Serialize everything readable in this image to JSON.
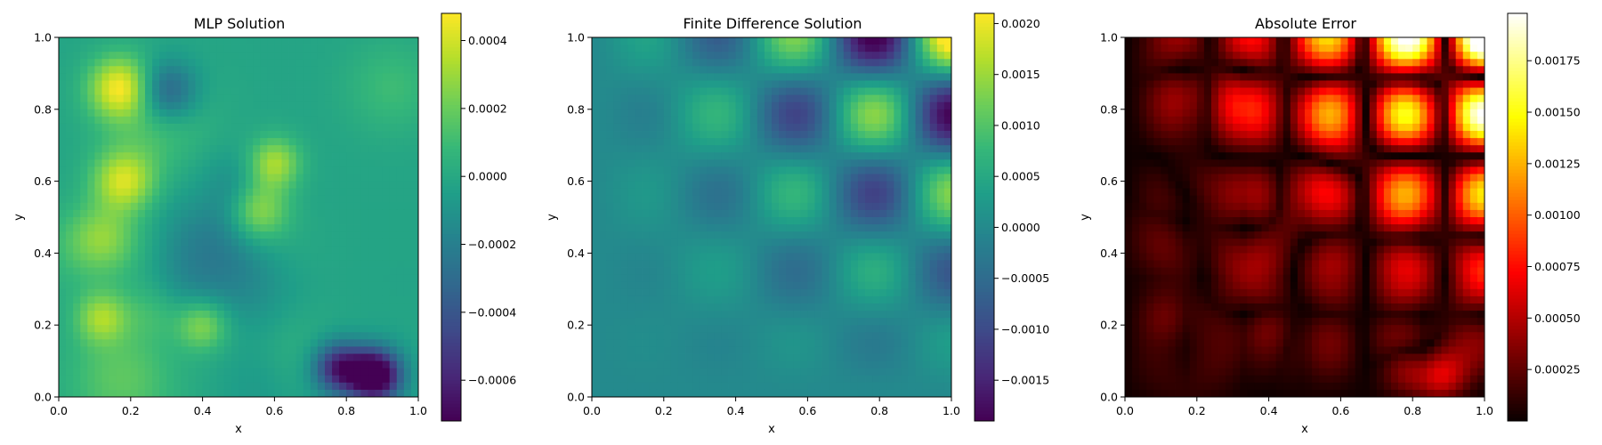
{
  "chart_data": [
    {
      "type": "heatmap",
      "title": "MLP Solution",
      "xlabel": "x",
      "ylabel": "y",
      "xlim": [
        0.0,
        1.0
      ],
      "ylim": [
        0.0,
        1.0
      ],
      "x_ticks": [
        "0.0",
        "0.2",
        "0.4",
        "0.6",
        "0.8",
        "1.0"
      ],
      "y_ticks": [
        "0.0",
        "0.2",
        "0.4",
        "0.6",
        "0.8",
        "1.0"
      ],
      "colormap": "viridis",
      "colorbar": {
        "range": [
          -0.00072,
          0.00048
        ],
        "ticks": [
          -0.0006,
          -0.0004,
          -0.0002,
          0.0,
          0.0002,
          0.0004
        ],
        "tick_labels": [
          "−0.0006",
          "−0.0004",
          "−0.0002",
          "0.0000",
          "0.0002",
          "0.0004"
        ]
      },
      "field": "mlp"
    },
    {
      "type": "heatmap",
      "title": "Finite Difference Solution",
      "xlabel": "x",
      "ylabel": "y",
      "xlim": [
        0.0,
        1.0
      ],
      "ylim": [
        0.0,
        1.0
      ],
      "x_ticks": [
        "0.0",
        "0.2",
        "0.4",
        "0.6",
        "0.8",
        "1.0"
      ],
      "y_ticks": [
        "0.0",
        "0.2",
        "0.4",
        "0.6",
        "0.8",
        "1.0"
      ],
      "colormap": "viridis",
      "colorbar": {
        "range": [
          -0.0019,
          0.0021
        ],
        "ticks": [
          -0.0015,
          -0.001,
          -0.0005,
          0.0,
          0.0005,
          0.001,
          0.0015,
          0.002
        ],
        "tick_labels": [
          "−0.0015",
          "−0.0010",
          "−0.0005",
          "0.0000",
          "0.0005",
          "0.0010",
          "0.0015",
          "0.0020"
        ]
      },
      "field": "fd"
    },
    {
      "type": "heatmap",
      "title": "Absolute Error",
      "xlabel": "x",
      "ylabel": "y",
      "xlim": [
        0.0,
        1.0
      ],
      "ylim": [
        0.0,
        1.0
      ],
      "x_ticks": [
        "0.0",
        "0.2",
        "0.4",
        "0.6",
        "0.8",
        "1.0"
      ],
      "y_ticks": [
        "0.0",
        "0.2",
        "0.4",
        "0.6",
        "0.8",
        "1.0"
      ],
      "colormap": "hot",
      "colorbar": {
        "range": [
          0.0,
          0.00198
        ],
        "ticks": [
          0.00025,
          0.0005,
          0.00075,
          0.001,
          0.00125,
          0.0015,
          0.00175
        ],
        "tick_labels": [
          "0.00025",
          "0.00050",
          "0.00075",
          "0.00100",
          "0.00125",
          "0.00150",
          "0.00175"
        ]
      },
      "field": "err"
    }
  ]
}
